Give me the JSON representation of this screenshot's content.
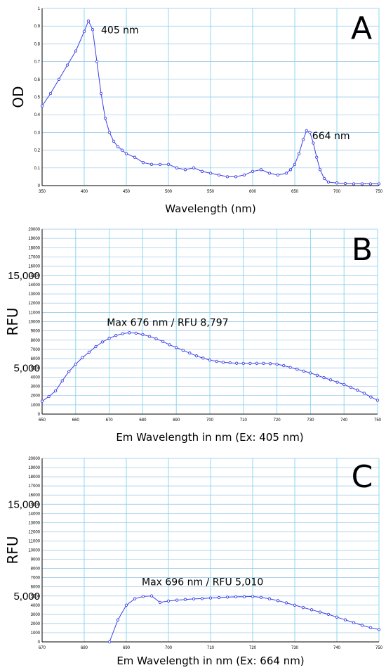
{
  "chart_data": [
    {
      "type": "line",
      "panel_label": "A",
      "xlabel": "Wavelength (nm)",
      "ylabel": "OD",
      "xlim": [
        350,
        750
      ],
      "ylim": [
        0,
        1
      ],
      "x_ticks": [
        350,
        400,
        450,
        500,
        550,
        600,
        650,
        700,
        750
      ],
      "y_ticks": [
        0,
        0.1,
        0.2,
        0.3,
        0.4,
        0.5,
        0.6,
        0.7,
        0.8,
        0.9,
        1
      ],
      "y_tick_labels": [
        "0",
        "0.1",
        "0.2",
        "0.3",
        "0.4",
        "0.5",
        "0.6",
        "0.7",
        "0.8",
        "0.9",
        "1"
      ],
      "grid": true,
      "annotations": [
        {
          "text": "405 nm",
          "x": 405,
          "y": 0.93
        },
        {
          "text": "664 nm",
          "x": 664,
          "y": 0.31
        }
      ],
      "series": [
        {
          "color": "#3b3fe6",
          "x": [
            350,
            360,
            370,
            380,
            390,
            400,
            405,
            410,
            415,
            420,
            425,
            430,
            435,
            440,
            445,
            450,
            460,
            470,
            480,
            490,
            500,
            510,
            520,
            530,
            540,
            550,
            560,
            570,
            580,
            590,
            600,
            610,
            620,
            630,
            640,
            645,
            650,
            655,
            660,
            664,
            668,
            672,
            676,
            680,
            685,
            690,
            700,
            710,
            720,
            730,
            740,
            750
          ],
          "y": [
            0.45,
            0.52,
            0.6,
            0.68,
            0.76,
            0.87,
            0.93,
            0.88,
            0.7,
            0.52,
            0.38,
            0.3,
            0.25,
            0.22,
            0.2,
            0.18,
            0.16,
            0.13,
            0.12,
            0.12,
            0.12,
            0.1,
            0.09,
            0.1,
            0.08,
            0.07,
            0.06,
            0.05,
            0.05,
            0.06,
            0.08,
            0.09,
            0.07,
            0.06,
            0.07,
            0.09,
            0.12,
            0.18,
            0.26,
            0.31,
            0.3,
            0.24,
            0.16,
            0.09,
            0.04,
            0.02,
            0.015,
            0.012,
            0.01,
            0.01,
            0.01,
            0.01
          ]
        }
      ]
    },
    {
      "type": "line",
      "panel_label": "B",
      "xlabel": "Em Wavelength in nm (Ex: 405 nm)",
      "ylabel": "RFU",
      "xlim": [
        650,
        750
      ],
      "ylim": [
        0,
        20000
      ],
      "x_ticks": [
        650,
        660,
        670,
        680,
        690,
        700,
        710,
        720,
        730,
        740,
        750
      ],
      "y_ticks": [
        0,
        1000,
        2000,
        3000,
        4000,
        5000,
        6000,
        7000,
        8000,
        9000,
        10000,
        11000,
        12000,
        13000,
        14000,
        15000,
        16000,
        17000,
        18000,
        19000,
        20000
      ],
      "y_tick_labels": [
        "0",
        "1000",
        "2000",
        "3000",
        "4000",
        "5000",
        "6000",
        "7000",
        "8000",
        "9000",
        "10000",
        "11000",
        "12000",
        "13000",
        "14000",
        "15000",
        "16000",
        "17000",
        "18000",
        "19000",
        "20000"
      ],
      "large_y_labels": [
        {
          "value": 15000,
          "text": "15,000"
        },
        {
          "value": 5000,
          "text": "5,000"
        }
      ],
      "grid": true,
      "annotations": [
        {
          "text": "Max 676 nm / RFU 8,797",
          "x": 676,
          "y": 8797
        }
      ],
      "series": [
        {
          "color": "#3b3fe6",
          "x": [
            650,
            652,
            654,
            656,
            658,
            660,
            662,
            664,
            666,
            668,
            670,
            672,
            674,
            676,
            678,
            680,
            682,
            684,
            686,
            688,
            690,
            692,
            694,
            696,
            698,
            700,
            702,
            704,
            706,
            708,
            710,
            712,
            714,
            716,
            718,
            720,
            722,
            724,
            726,
            728,
            730,
            732,
            734,
            736,
            738,
            740,
            742,
            744,
            746,
            748,
            750
          ],
          "y": [
            1400,
            1900,
            2500,
            3600,
            4600,
            5400,
            6100,
            6700,
            7300,
            7800,
            8200,
            8500,
            8700,
            8797,
            8750,
            8600,
            8400,
            8150,
            7850,
            7500,
            7200,
            6900,
            6600,
            6300,
            6050,
            5850,
            5700,
            5600,
            5550,
            5500,
            5480,
            5480,
            5490,
            5480,
            5450,
            5400,
            5250,
            5050,
            4850,
            4650,
            4450,
            4200,
            3950,
            3700,
            3450,
            3200,
            2900,
            2600,
            2250,
            1850,
            1500
          ]
        }
      ]
    },
    {
      "type": "line",
      "panel_label": "C",
      "xlabel": "Em Wavelength in nm (Ex: 664 nm)",
      "ylabel": "RFU",
      "xlim": [
        670,
        750
      ],
      "ylim": [
        0,
        20000
      ],
      "x_ticks": [
        670,
        680,
        690,
        700,
        710,
        720,
        730,
        740,
        750
      ],
      "y_ticks": [
        0,
        1000,
        2000,
        3000,
        4000,
        5000,
        6000,
        7000,
        8000,
        9000,
        10000,
        11000,
        12000,
        13000,
        14000,
        15000,
        16000,
        17000,
        18000,
        19000,
        20000
      ],
      "y_tick_labels": [
        "0",
        "1000",
        "2000",
        "3000",
        "4000",
        "5000",
        "6000",
        "7000",
        "8000",
        "9000",
        "10000",
        "11000",
        "12000",
        "13000",
        "14000",
        "15000",
        "16000",
        "17000",
        "18000",
        "19000",
        "20000"
      ],
      "large_y_labels": [
        {
          "value": 15000,
          "text": "15,000"
        },
        {
          "value": 5000,
          "text": "5,000"
        }
      ],
      "grid": true,
      "annotations": [
        {
          "text": "Max 696 nm / RFU 5,010",
          "x": 696,
          "y": 5010
        }
      ],
      "series": [
        {
          "color": "#3b3fe6",
          "x": [
            686,
            688,
            690,
            692,
            694,
            696,
            698,
            700,
            702,
            704,
            706,
            708,
            710,
            712,
            714,
            716,
            718,
            720,
            722,
            724,
            726,
            728,
            730,
            732,
            734,
            736,
            738,
            740,
            742,
            744,
            746,
            748,
            750
          ],
          "y": [
            0,
            2400,
            4000,
            4700,
            4950,
            5010,
            4300,
            4450,
            4550,
            4620,
            4680,
            4720,
            4780,
            4830,
            4870,
            4910,
            4930,
            4950,
            4850,
            4700,
            4500,
            4250,
            4000,
            3750,
            3500,
            3250,
            3000,
            2700,
            2400,
            2100,
            1800,
            1550,
            1350
          ]
        }
      ]
    }
  ]
}
